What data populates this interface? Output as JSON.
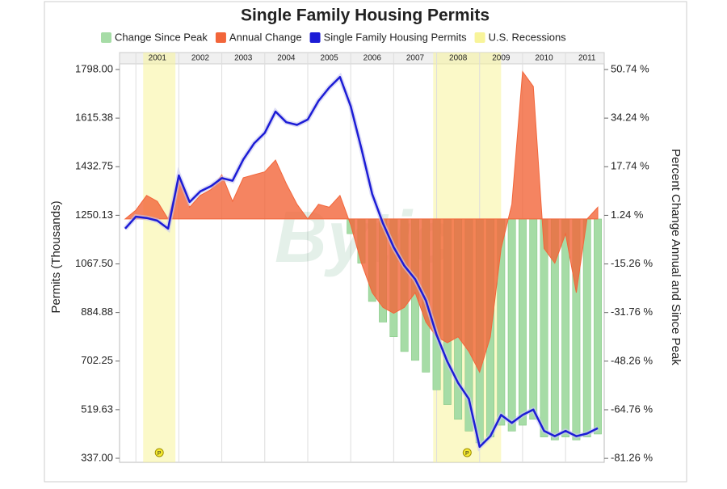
{
  "chart_data": {
    "type": "combo",
    "title": "Single Family Housing Permits",
    "watermark": "Bytic",
    "y_label": "Permits (Thousands)",
    "y2_label": "Percent Change Annual and Since Peak",
    "x": [
      2000.75,
      2001,
      2001.25,
      2001.5,
      2001.75,
      2002,
      2002.25,
      2002.5,
      2002.75,
      2003,
      2003.25,
      2003.5,
      2003.75,
      2004,
      2004.25,
      2004.5,
      2004.75,
      2005,
      2005.25,
      2005.5,
      2005.75,
      2006,
      2006.25,
      2006.5,
      2006.75,
      2007,
      2007.25,
      2007.5,
      2007.75,
      2008,
      2008.25,
      2008.5,
      2008.75,
      2009,
      2009.25,
      2009.5,
      2009.75,
      2010,
      2010.25,
      2010.5,
      2010.75,
      2011,
      2011.25,
      2011.5,
      2011.75
    ],
    "xlim": [
      2000.62,
      2011.9
    ],
    "xticks": [
      {
        "value": 2001.5,
        "label": "2001"
      },
      {
        "value": 2002.5,
        "label": "2002"
      },
      {
        "value": 2003.5,
        "label": "2003"
      },
      {
        "value": 2004.5,
        "label": "2004"
      },
      {
        "value": 2005.5,
        "label": "2005"
      },
      {
        "value": 2006.5,
        "label": "2006"
      },
      {
        "value": 2007.5,
        "label": "2007"
      },
      {
        "value": 2008.5,
        "label": "2008"
      },
      {
        "value": 2009.5,
        "label": "2009"
      },
      {
        "value": 2010.5,
        "label": "2010"
      },
      {
        "value": 2011.5,
        "label": "2011"
      }
    ],
    "ylim": [
      321.8,
      1861.8
    ],
    "yticks": [
      {
        "value": 1798,
        "label": "1798.00"
      },
      1615.38,
      1432.75,
      1250.13,
      {
        "value": 1067.5,
        "label": "1067.50"
      },
      884.88,
      702.25,
      519.63,
      {
        "value": 337,
        "label": "337.00"
      }
    ],
    "y2lim": [
      -82.6,
      56.5
    ],
    "y2ticks": [
      {
        "value": 50.74,
        "label": "50.74 %"
      },
      {
        "value": 34.24,
        "label": "34.24 %"
      },
      {
        "value": 17.74,
        "label": "17.74 %"
      },
      {
        "value": 1.24,
        "label": "1.24 %"
      },
      {
        "value": -15.26,
        "label": "-15.26 %"
      },
      {
        "value": -31.76,
        "label": "-31.76 %"
      },
      {
        "value": -48.26,
        "label": "-48.26 %"
      },
      {
        "value": -64.76,
        "label": "-64.76 %"
      },
      {
        "value": -81.26,
        "label": "-81.26 %"
      }
    ],
    "series": [
      {
        "name": "Change Since Peak",
        "type": "bar",
        "axis": "y2",
        "color": "#a6dca6",
        "values": [
          null,
          null,
          null,
          null,
          null,
          null,
          null,
          null,
          null,
          null,
          null,
          null,
          null,
          null,
          null,
          null,
          null,
          null,
          null,
          null,
          null,
          -5,
          -15,
          -28,
          -35,
          -40,
          -45,
          -48,
          -52,
          -58,
          -63,
          -68,
          -72,
          -76,
          -74,
          -70,
          -72,
          -70,
          -68,
          -74,
          -75,
          -74,
          -75,
          -74,
          -73
        ]
      },
      {
        "name": "Annual Change",
        "type": "area",
        "axis": "y2",
        "color": "#f2653a",
        "values": [
          0,
          3,
          8,
          6,
          0,
          14,
          4,
          8,
          10,
          15,
          6,
          14,
          15,
          16,
          20,
          12,
          5,
          0,
          5,
          4,
          8,
          -2,
          -15,
          -25,
          -30,
          -32,
          -30,
          -25,
          -35,
          -40,
          -42,
          -40,
          -45,
          -52,
          -40,
          -10,
          5,
          50,
          45,
          -10,
          -15,
          -5,
          -25,
          0,
          4
        ]
      },
      {
        "name": "Single Family Housing Permits",
        "type": "line",
        "color": "#1c1cd6",
        "values": [
          1200,
          1245,
          1240,
          1230,
          1200,
          1400,
          1300,
          1340,
          1360,
          1390,
          1380,
          1460,
          1520,
          1560,
          1640,
          1600,
          1590,
          1610,
          1680,
          1730,
          1770,
          1660,
          1500,
          1330,
          1220,
          1130,
          1060,
          1010,
          930,
          800,
          700,
          620,
          560,
          380,
          420,
          500,
          470,
          500,
          520,
          440,
          420,
          440,
          420,
          430,
          450
        ]
      },
      {
        "name": "U.S. Recessions",
        "type": "band",
        "color": "#f8f49a",
        "marker_label": "P",
        "ranges": [
          [
            2001.17,
            2001.92
          ],
          [
            2007.92,
            2009.5
          ]
        ]
      }
    ]
  }
}
